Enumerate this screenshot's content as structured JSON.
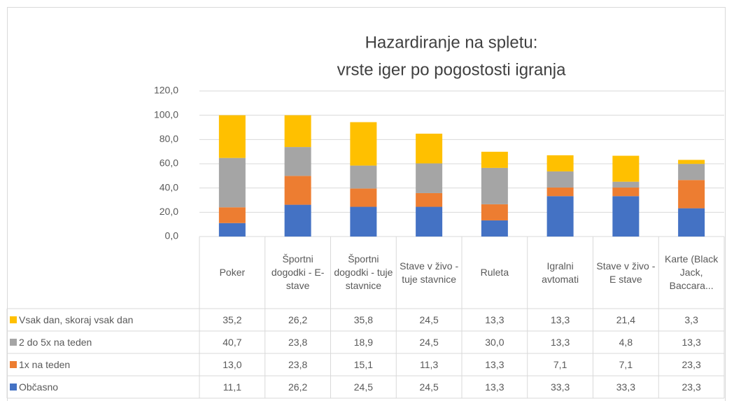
{
  "chart_data": {
    "type": "stacked_bar",
    "title": [
      "Hazardiranje na spletu:",
      "vrste iger po pogostosti igranja"
    ],
    "categories": [
      "Poker",
      "Športni dogodki - E-stave",
      "Športni dogodki - tuje stavnice",
      "Stave v živo - tuje stavnice",
      "Ruleta",
      "Igralni avtomati",
      "Stave v živo - E stave",
      "Karte (Black Jack, Baccara..."
    ],
    "series": [
      {
        "name": "Občasno",
        "color": "#4472c4",
        "values": [
          11.1,
          26.2,
          24.5,
          24.5,
          13.3,
          33.3,
          33.3,
          23.3
        ],
        "value_labels": [
          "11,1",
          "26,2",
          "24,5",
          "24,5",
          "13,3",
          "33,3",
          "33,3",
          "23,3"
        ]
      },
      {
        "name": "1x na teden",
        "color": "#ed7d31",
        "values": [
          13.0,
          23.8,
          15.1,
          11.3,
          13.3,
          7.1,
          7.1,
          23.3
        ],
        "value_labels": [
          "13,0",
          "23,8",
          "15,1",
          "11,3",
          "13,3",
          "7,1",
          "7,1",
          "23,3"
        ]
      },
      {
        "name": "2 do 5x na teden",
        "color": "#a5a5a5",
        "values": [
          40.7,
          23.8,
          18.9,
          24.5,
          30.0,
          13.3,
          4.8,
          13.3
        ],
        "value_labels": [
          "40,7",
          "23,8",
          "18,9",
          "24,5",
          "30,0",
          "13,3",
          "4,8",
          "13,3"
        ]
      },
      {
        "name": "Vsak dan, skoraj vsak dan",
        "color": "#ffc000",
        "values": [
          35.2,
          26.2,
          35.8,
          24.5,
          13.3,
          13.3,
          21.4,
          3.3
        ],
        "value_labels": [
          "35,2",
          "26,2",
          "35,8",
          "24,5",
          "13,3",
          "13,3",
          "21,4",
          "3,3"
        ]
      }
    ],
    "ylim": [
      0,
      120
    ],
    "yticks": [
      {
        "value": 0,
        "label": "0,0"
      },
      {
        "value": 20,
        "label": "20,0"
      },
      {
        "value": 40,
        "label": "40,0"
      },
      {
        "value": 60,
        "label": "60,0"
      },
      {
        "value": 80,
        "label": "80,0"
      },
      {
        "value": 100,
        "label": "100,0"
      },
      {
        "value": 120,
        "label": "120,0"
      }
    ],
    "grid": true,
    "data_table": true
  }
}
